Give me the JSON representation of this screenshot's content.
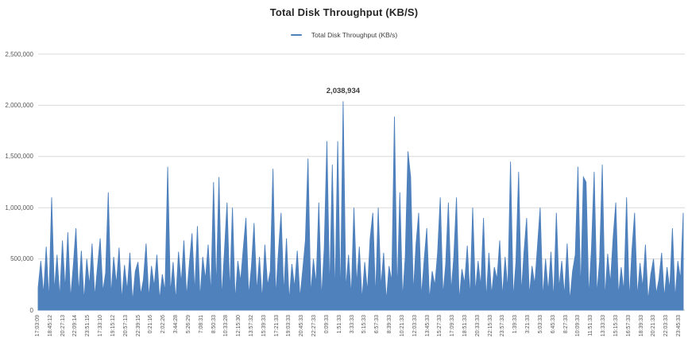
{
  "title": "Total Disk Throughput (KB/S)",
  "legend": {
    "label": "Total Disk Throughput (KB/s)",
    "color": "#4F81BD"
  },
  "annotation": {
    "label": "2,038,934"
  },
  "colors": {
    "series_blue": "#4F81BD",
    "gridline": "#D9D9D9",
    "axis_line": "#BFBFBF",
    "tick_text": "#595959"
  },
  "chart_data": {
    "type": "line",
    "title": "Total Disk Throughput (KB/S)",
    "legend_entries": [
      "Total Disk Throughput (KB/s)"
    ],
    "legend_position": "top",
    "grid": "horizontal",
    "line_color": "#4F81BD",
    "ylim": [
      0,
      2500000
    ],
    "y_ticks": [
      0,
      500000,
      1000000,
      1500000,
      2000000,
      2500000
    ],
    "y_tick_labels": [
      "0",
      "500,000",
      "1,000,000",
      "1,500,000",
      "2,000,000",
      "2,500,000"
    ],
    "x_tick_labels": [
      "17:03:09",
      "18:45:12",
      "20:27:13",
      "22:09:14",
      "23:51:15",
      "17:33:10",
      "19:15:12",
      "20:57:13",
      "22:39:15",
      "0:21:16",
      "2:02:26",
      "3:44:28",
      "5:26:29",
      "7:08:31",
      "8:50:33",
      "10:33:28",
      "12:15:30",
      "13:57:32",
      "15:39:33",
      "17:21:33",
      "19:03:33",
      "20:45:33",
      "22:27:33",
      "0:09:33",
      "1:51:33",
      "3:33:33",
      "5:15:33",
      "6:57:33",
      "8:39:33",
      "10:21:33",
      "12:03:33",
      "13:45:33",
      "15:27:33",
      "17:09:33",
      "18:51:33",
      "20:33:33",
      "22:15:33",
      "23:57:33",
      "1:39:33",
      "3:21:33",
      "5:03:33",
      "6:45:33",
      "8:27:33",
      "10:09:33",
      "11:51:33",
      "13:33:33",
      "15:15:33",
      "16:57:33",
      "18:39:33",
      "20:21:33",
      "22:03:33",
      "23:45:33"
    ],
    "x_label_rotation": -90,
    "max_point": {
      "value": 2038934,
      "label": "2,038,934"
    },
    "series": [
      {
        "name": "Total Disk Throughput (KB/s)",
        "values": [
          220000,
          480000,
          150000,
          620000,
          90000,
          1100000,
          180000,
          540000,
          120000,
          680000,
          200000,
          760000,
          110000,
          430000,
          800000,
          160000,
          580000,
          90000,
          500000,
          240000,
          650000,
          130000,
          420000,
          700000,
          180000,
          360000,
          1150000,
          140000,
          520000,
          250000,
          610000,
          100000,
          440000,
          190000,
          560000,
          80000,
          380000,
          470000,
          150000,
          300000,
          650000,
          120000,
          430000,
          230000,
          540000,
          100000,
          350000,
          180000,
          1400000,
          160000,
          470000,
          90000,
          570000,
          260000,
          680000,
          130000,
          450000,
          750000,
          170000,
          820000,
          110000,
          520000,
          300000,
          640000,
          150000,
          1250000,
          200000,
          1300000,
          120000,
          560000,
          1050000,
          170000,
          1000000,
          90000,
          480000,
          280000,
          600000,
          900000,
          140000,
          420000,
          850000,
          180000,
          520000,
          100000,
          640000,
          240000,
          380000,
          1380000,
          130000,
          560000,
          950000,
          160000,
          700000,
          90000,
          450000,
          220000,
          580000,
          120000,
          390000,
          680000,
          1480000,
          150000,
          500000,
          250000,
          1050000,
          110000,
          600000,
          1650000,
          170000,
          1420000,
          130000,
          1650000,
          90000,
          2038934,
          200000,
          540000,
          140000,
          1000000,
          250000,
          620000,
          100000,
          470000,
          180000,
          700000,
          950000,
          120000,
          1000000,
          220000,
          560000,
          90000,
          430000,
          280000,
          1890000,
          150000,
          1150000,
          110000,
          520000,
          1550000,
          1300000,
          160000,
          640000,
          950000,
          130000,
          480000,
          800000,
          100000,
          380000,
          240000,
          560000,
          1100000,
          140000,
          450000,
          1050000,
          180000,
          520000,
          1100000,
          90000,
          400000,
          260000,
          630000,
          120000,
          1000000,
          170000,
          480000,
          230000,
          900000,
          100000,
          560000,
          150000,
          420000,
          300000,
          680000,
          130000,
          520000,
          200000,
          1450000,
          110000,
          470000,
          1350000,
          160000,
          560000,
          900000,
          140000,
          430000,
          250000,
          620000,
          1000000,
          120000,
          500000,
          180000,
          570000,
          100000,
          950000,
          210000,
          480000,
          140000,
          650000,
          90000,
          380000,
          540000,
          1400000,
          170000,
          1300000,
          1250000,
          130000,
          600000,
          1350000,
          150000,
          480000,
          1420000,
          110000,
          550000,
          260000,
          700000,
          1050000,
          140000,
          420000,
          180000,
          1100000,
          100000,
          580000,
          950000,
          130000,
          460000,
          220000,
          640000,
          90000,
          350000,
          500000,
          160000,
          300000,
          560000,
          120000,
          420000,
          200000,
          800000,
          110000,
          480000,
          300000,
          950000
        ]
      }
    ]
  }
}
